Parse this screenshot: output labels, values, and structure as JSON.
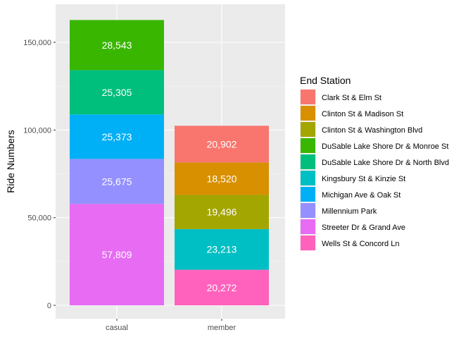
{
  "chart_data": {
    "type": "bar",
    "stacked": true,
    "categories": [
      "casual",
      "member"
    ],
    "xlabel": "",
    "ylabel": "Ride Numbers",
    "ylim": [
      0,
      165000
    ],
    "yticks": [
      0,
      50000,
      100000,
      150000
    ],
    "ytick_labels": [
      "0",
      "50,000",
      "100,000",
      "150,000"
    ],
    "grid": true,
    "legend": {
      "title": "End Station",
      "placement": "right"
    },
    "series": [
      {
        "name": "Clark St & Elm St",
        "color": "#F8766D",
        "values": [
          0,
          20902
        ]
      },
      {
        "name": "Clinton St & Madison St",
        "color": "#D89000",
        "values": [
          0,
          18520
        ]
      },
      {
        "name": "Clinton St & Washington Blvd",
        "color": "#A3A500",
        "values": [
          0,
          19496
        ]
      },
      {
        "name": "DuSable Lake Shore Dr & Monroe St",
        "color": "#39B600",
        "values": [
          28543,
          0
        ]
      },
      {
        "name": "DuSable Lake Shore Dr & North Blvd",
        "color": "#00BF7D",
        "values": [
          25305,
          0
        ]
      },
      {
        "name": "Kingsbury St & Kinzie St",
        "color": "#00BFC4",
        "values": [
          0,
          23213
        ]
      },
      {
        "name": "Michigan Ave & Oak St",
        "color": "#00B0F6",
        "values": [
          25373,
          0
        ]
      },
      {
        "name": "Millennium Park",
        "color": "#9590FF",
        "values": [
          25675,
          0
        ]
      },
      {
        "name": "Streeter Dr & Grand Ave",
        "color": "#E76BF3",
        "values": [
          57809,
          0
        ]
      },
      {
        "name": "Wells St & Concord Ln",
        "color": "#FF62BC",
        "values": [
          0,
          20272
        ]
      }
    ]
  }
}
